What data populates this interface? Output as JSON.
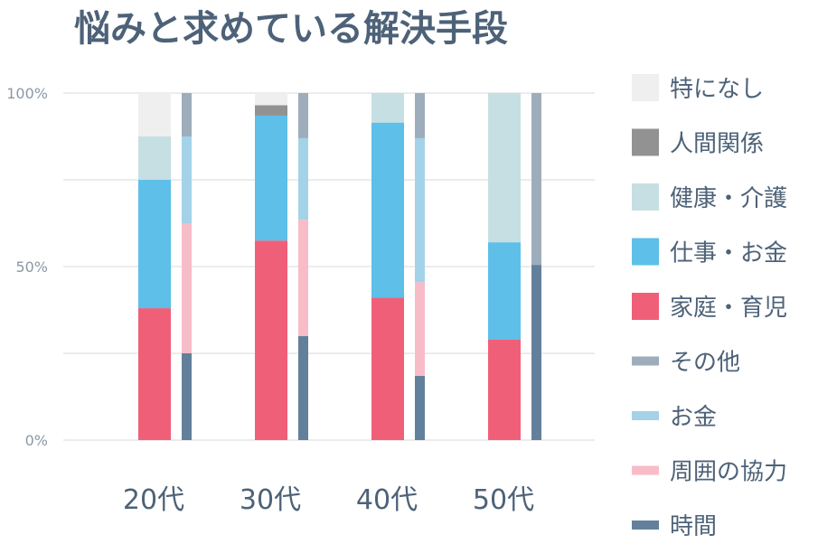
{
  "chart_data": {
    "type": "bar",
    "title": "悩みと求めている解決手段",
    "xlabel": "",
    "ylabel": "",
    "ylim": [
      0,
      100
    ],
    "yticks": [
      "0%",
      "50%",
      "100%"
    ],
    "categories": [
      "20代",
      "30代",
      "40代",
      "50代"
    ],
    "groups": [
      {
        "name": "悩み",
        "series": [
          {
            "name": "家庭・育児",
            "color": "#f05f78",
            "values": [
              38,
              57.5,
              41,
              29
            ]
          },
          {
            "name": "仕事・お金",
            "color": "#5ebfe9",
            "values": [
              37,
              36,
              50.5,
              28
            ]
          },
          {
            "name": "健康・介護",
            "color": "#c6dfe3",
            "values": [
              12.5,
              0,
              8.5,
              43
            ]
          },
          {
            "name": "人間関係",
            "color": "#929292",
            "values": [
              0,
              3,
              0,
              0
            ]
          },
          {
            "name": "特になし",
            "color": "#efefef",
            "values": [
              12.5,
              3.5,
              0,
              0
            ]
          }
        ]
      },
      {
        "name": "求めている解決手段",
        "series": [
          {
            "name": "時間",
            "color": "#62809b",
            "values": [
              25,
              30,
              18.5,
              50.5
            ]
          },
          {
            "name": "周囲の協力",
            "color": "#f8bcc8",
            "values": [
              37.5,
              33.5,
              27,
              0
            ]
          },
          {
            "name": "お金",
            "color": "#a4d2e8",
            "values": [
              25,
              23.5,
              41.5,
              0
            ]
          },
          {
            "name": "その他",
            "color": "#9eadbb",
            "values": [
              12.5,
              13,
              13,
              49.5
            ]
          }
        ]
      }
    ],
    "legend": {
      "placement": "right",
      "entries": [
        {
          "name": "特になし",
          "color": "#efefef"
        },
        {
          "name": "人間関係",
          "color": "#929292"
        },
        {
          "name": "健康・介護",
          "color": "#c6dfe3"
        },
        {
          "name": "仕事・お金",
          "color": "#5ebfe9"
        },
        {
          "name": "家庭・育児",
          "color": "#f05f78"
        },
        {
          "name": "その他",
          "color": "#9eadbb"
        },
        {
          "name": "お金",
          "color": "#a4d2e8"
        },
        {
          "name": "周囲の協力",
          "color": "#f8bcc8"
        },
        {
          "name": "時間",
          "color": "#62809b"
        }
      ]
    },
    "grid": true
  }
}
